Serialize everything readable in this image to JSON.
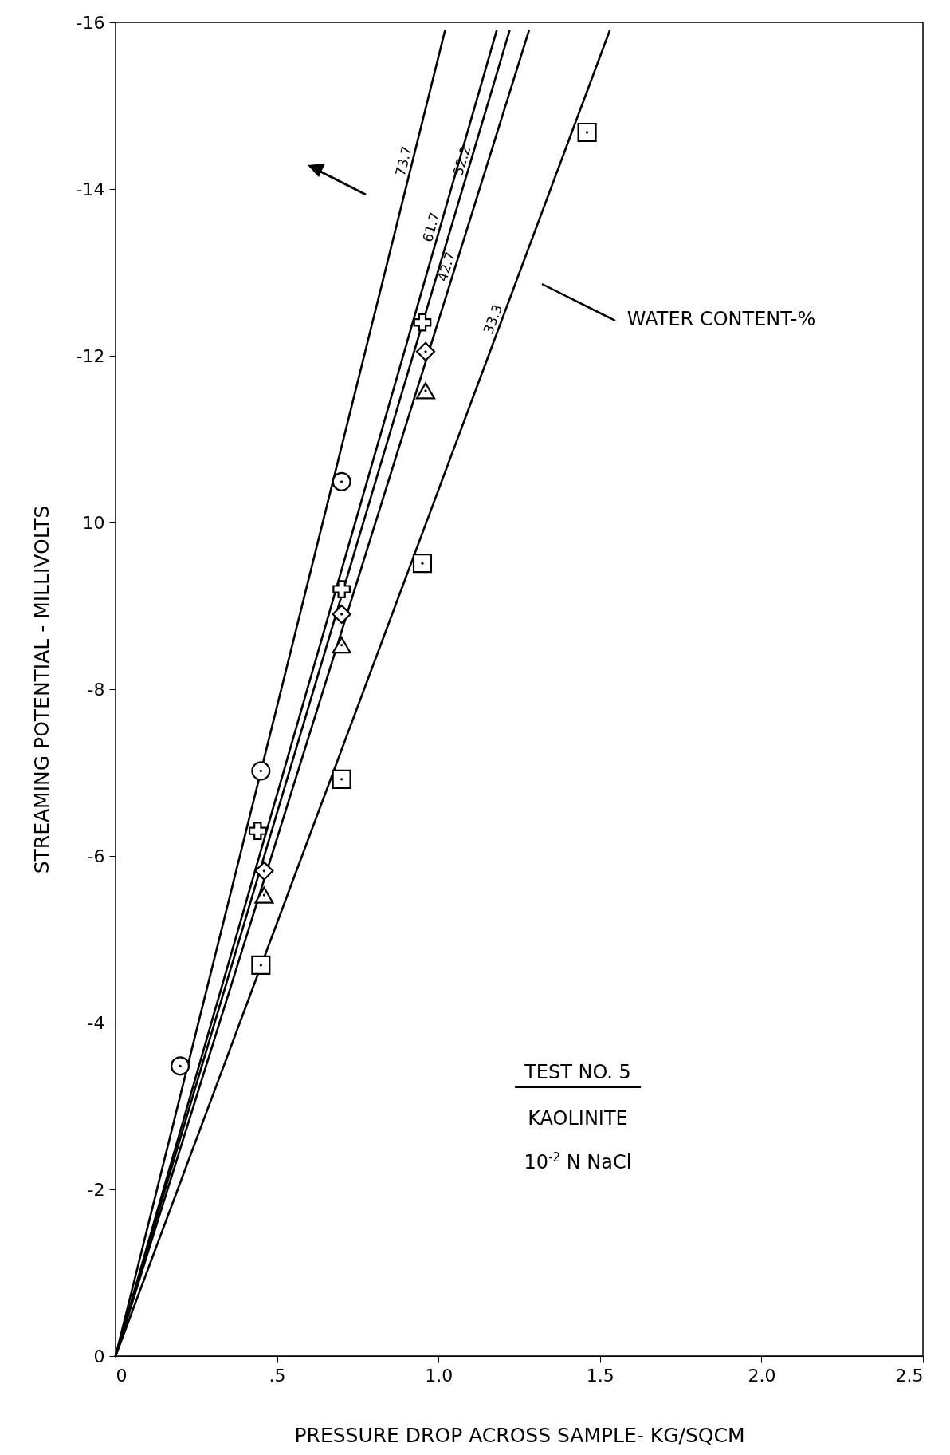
{
  "chart_data": {
    "type": "line",
    "xlabel": "PRESSURE DROP ACROSS SAMPLE- KG/SQCM",
    "ylabel": "STREAMING POTENTIAL - MILLIVOLTS",
    "xlim": [
      0,
      2.5
    ],
    "xticks": [
      0,
      {
        "value": 0.5,
        "label": ".5"
      },
      {
        "value": 1,
        "label": "1.0"
      },
      {
        "value": 1.5,
        "label": "1.5"
      },
      {
        "value": 2,
        "label": "2.0"
      },
      2.5
    ],
    "ylim": [
      0,
      -16
    ],
    "yticks": [
      0,
      -2,
      -4,
      -6,
      -8,
      {
        "value": -10,
        "label": "10"
      },
      -12,
      -14,
      -16
    ],
    "grid": false,
    "line_style": "solid",
    "annotations": [
      "WATER CONTENT-%",
      "TEST NO. 5",
      "KAOLINITE",
      "10$^{-2}$ N NaCl"
    ],
    "series": [
      {
        "name": "73.7",
        "type": "line",
        "color": "#000000",
        "x": [
          0,
          1.02
        ],
        "values": [
          0,
          -15.9
        ]
      },
      {
        "name": "61.7",
        "type": "line",
        "color": "#000000",
        "x": [
          0,
          1.18
        ],
        "values": [
          0,
          -15.9
        ]
      },
      {
        "name": "52.2",
        "type": "line",
        "color": "#000000",
        "x": [
          0,
          1.22
        ],
        "values": [
          0,
          -15.9
        ]
      },
      {
        "name": "42.7",
        "type": "line",
        "color": "#000000",
        "x": [
          0,
          1.28
        ],
        "values": [
          0,
          -15.9
        ]
      },
      {
        "name": "33.3",
        "type": "line",
        "color": "#000000",
        "x": [
          0,
          1.53
        ],
        "values": [
          0,
          -15.9
        ]
      },
      {
        "type": "scatter",
        "marker": "circle",
        "color": "#000000",
        "x": [
          0.2,
          0.45,
          0.7
        ],
        "values": [
          -3.48,
          -7.02,
          -10.49
        ]
      },
      {
        "type": "scatter",
        "marker": "cross",
        "color": "#000000",
        "x": [
          0.44,
          0.7,
          0.95
        ],
        "values": [
          -6.3,
          -9.2,
          -12.4
        ]
      },
      {
        "type": "scatter",
        "marker": "diamond",
        "color": "#000000",
        "x": [
          0.46,
          0.7,
          0.96
        ],
        "values": [
          -5.82,
          -8.9,
          -12.05
        ]
      },
      {
        "type": "scatter",
        "marker": "triangle",
        "color": "#000000",
        "x": [
          0.46,
          0.7,
          0.96
        ],
        "values": [
          -5.53,
          -8.53,
          -11.58
        ]
      },
      {
        "type": "scatter",
        "marker": "square",
        "color": "#000000",
        "x": [
          0.45,
          0.7,
          0.95,
          1.46
        ],
        "values": [
          -4.69,
          -6.92,
          -9.51,
          -14.68
        ]
      }
    ]
  }
}
